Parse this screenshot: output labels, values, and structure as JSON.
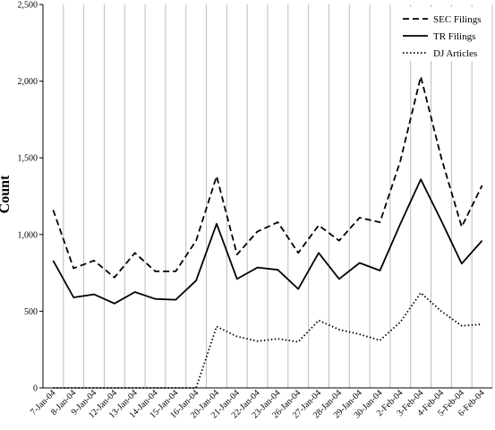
{
  "chart_data": {
    "type": "line",
    "ylabel": "Count",
    "ylim": [
      0,
      2500
    ],
    "yticks": [
      0,
      500,
      1000,
      1500,
      2000,
      2500
    ],
    "ytick_labels": [
      "0",
      "500",
      "1,000",
      "1,500",
      "2,000",
      "2,500"
    ],
    "grid": "vertical",
    "legend_position": "top-right",
    "categories": [
      "7-Jan-04",
      "8-Jan-04",
      "9-Jan-04",
      "12-Jan-04",
      "13-Jan-04",
      "14-Jan-04",
      "15-Jan-04",
      "16-Jan-04",
      "20-Jan-04",
      "21-Jan-04",
      "22-Jan-04",
      "23-Jan-04",
      "26-Jan-04",
      "27-Jan-04",
      "28-Jan-04",
      "29-Jan-04",
      "30-Jan-04",
      "2-Feb-04",
      "3-Feb-04",
      "4-Feb-04",
      "5-Feb-04",
      "6-Feb-04"
    ],
    "series": [
      {
        "name": "SEC Filings",
        "style": "dashed",
        "values": [
          1160,
          780,
          830,
          720,
          880,
          760,
          760,
          960,
          1380,
          870,
          1020,
          1080,
          880,
          1060,
          960,
          1110,
          1080,
          1480,
          2030,
          1500,
          1050,
          1320
        ]
      },
      {
        "name": "TR Filings",
        "style": "solid",
        "values": [
          830,
          590,
          610,
          550,
          625,
          580,
          575,
          700,
          1070,
          710,
          785,
          770,
          645,
          880,
          710,
          815,
          765,
          1070,
          1360,
          1090,
          810,
          960
        ]
      },
      {
        "name": "DJ Articles",
        "style": "dotted",
        "values": [
          0,
          0,
          0,
          0,
          0,
          0,
          0,
          0,
          400,
          335,
          305,
          320,
          300,
          440,
          380,
          350,
          310,
          430,
          620,
          500,
          405,
          415
        ]
      }
    ]
  }
}
